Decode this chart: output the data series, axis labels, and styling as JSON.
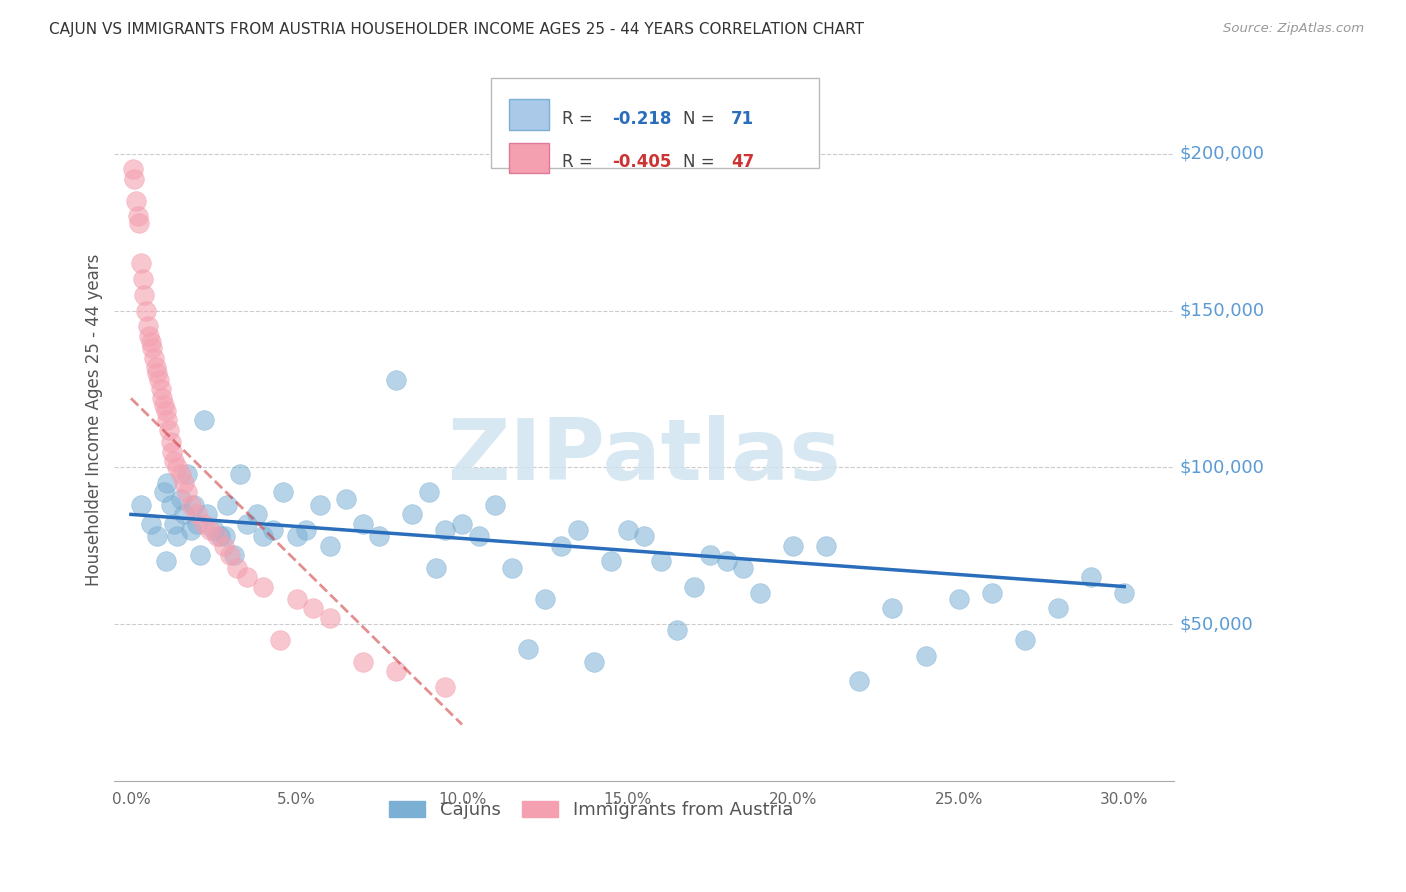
{
  "title": "CAJUN VS IMMIGRANTS FROM AUSTRIA HOUSEHOLDER INCOME AGES 25 - 44 YEARS CORRELATION CHART",
  "source": "Source: ZipAtlas.com",
  "ylabel": "Householder Income Ages 25 - 44 years",
  "ytick_vals": [
    50000,
    100000,
    150000,
    200000
  ],
  "ytick_labels": [
    "$50,000",
    "$100,000",
    "$150,000",
    "$200,000"
  ],
  "xtick_vals": [
    0.0,
    5.0,
    10.0,
    15.0,
    20.0,
    25.0,
    30.0
  ],
  "ymin": 0,
  "ymax": 230000,
  "xmin": -0.5,
  "xmax": 31.5,
  "cajun_color": "#7bafd4",
  "austria_color": "#f4a0b0",
  "cajun_trend_color": "#2a6ebb",
  "austria_trend_color": "#cc3333",
  "watermark": "ZIPatlas",
  "watermark_color": "#d0e4f0",
  "cajun_R": -0.218,
  "cajun_N": 71,
  "austria_R": -0.405,
  "austria_N": 47,
  "cajun_points_x": [
    0.3,
    0.6,
    0.8,
    1.0,
    1.1,
    1.2,
    1.3,
    1.4,
    1.5,
    1.6,
    1.7,
    1.8,
    1.9,
    2.0,
    2.1,
    2.2,
    2.3,
    2.5,
    2.7,
    2.9,
    3.1,
    3.3,
    3.5,
    3.8,
    4.0,
    4.3,
    4.6,
    5.0,
    5.3,
    5.7,
    6.0,
    6.5,
    7.0,
    7.5,
    8.0,
    8.5,
    9.0,
    9.5,
    10.0,
    10.5,
    11.0,
    11.5,
    12.0,
    12.5,
    13.0,
    13.5,
    14.0,
    14.5,
    15.0,
    15.5,
    16.0,
    16.5,
    17.0,
    17.5,
    18.0,
    18.5,
    19.0,
    20.0,
    21.0,
    22.0,
    23.0,
    24.0,
    25.0,
    26.0,
    27.0,
    28.0,
    29.0,
    30.0,
    1.05,
    2.85,
    9.2
  ],
  "cajun_points_y": [
    88000,
    82000,
    78000,
    92000,
    95000,
    88000,
    82000,
    78000,
    90000,
    85000,
    98000,
    80000,
    88000,
    82000,
    72000,
    115000,
    85000,
    80000,
    78000,
    88000,
    72000,
    98000,
    82000,
    85000,
    78000,
    80000,
    92000,
    78000,
    80000,
    88000,
    75000,
    90000,
    82000,
    78000,
    128000,
    85000,
    92000,
    80000,
    82000,
    78000,
    88000,
    68000,
    42000,
    58000,
    75000,
    80000,
    38000,
    70000,
    80000,
    78000,
    70000,
    48000,
    62000,
    72000,
    70000,
    68000,
    60000,
    75000,
    75000,
    32000,
    55000,
    40000,
    58000,
    60000,
    45000,
    55000,
    65000,
    60000,
    70000,
    78000,
    68000
  ],
  "austria_points_x": [
    0.05,
    0.1,
    0.15,
    0.2,
    0.25,
    0.3,
    0.35,
    0.4,
    0.45,
    0.5,
    0.55,
    0.6,
    0.65,
    0.7,
    0.75,
    0.8,
    0.85,
    0.9,
    0.95,
    1.0,
    1.05,
    1.1,
    1.15,
    1.2,
    1.25,
    1.3,
    1.4,
    1.5,
    1.6,
    1.7,
    1.8,
    2.0,
    2.2,
    2.4,
    2.6,
    2.8,
    3.0,
    3.2,
    3.5,
    4.0,
    4.5,
    5.0,
    5.5,
    6.0,
    7.0,
    8.0,
    9.5
  ],
  "austria_points_y": [
    195000,
    192000,
    185000,
    180000,
    178000,
    165000,
    160000,
    155000,
    150000,
    145000,
    142000,
    140000,
    138000,
    135000,
    132000,
    130000,
    128000,
    125000,
    122000,
    120000,
    118000,
    115000,
    112000,
    108000,
    105000,
    102000,
    100000,
    98000,
    95000,
    92000,
    88000,
    85000,
    82000,
    80000,
    78000,
    75000,
    72000,
    68000,
    65000,
    62000,
    45000,
    58000,
    55000,
    52000,
    38000,
    35000,
    30000
  ],
  "cajun_trend_x": [
    0,
    30
  ],
  "cajun_trend_y": [
    85000,
    62000
  ],
  "austria_trend_x": [
    0,
    10
  ],
  "austria_trend_y": [
    122000,
    18000
  ]
}
